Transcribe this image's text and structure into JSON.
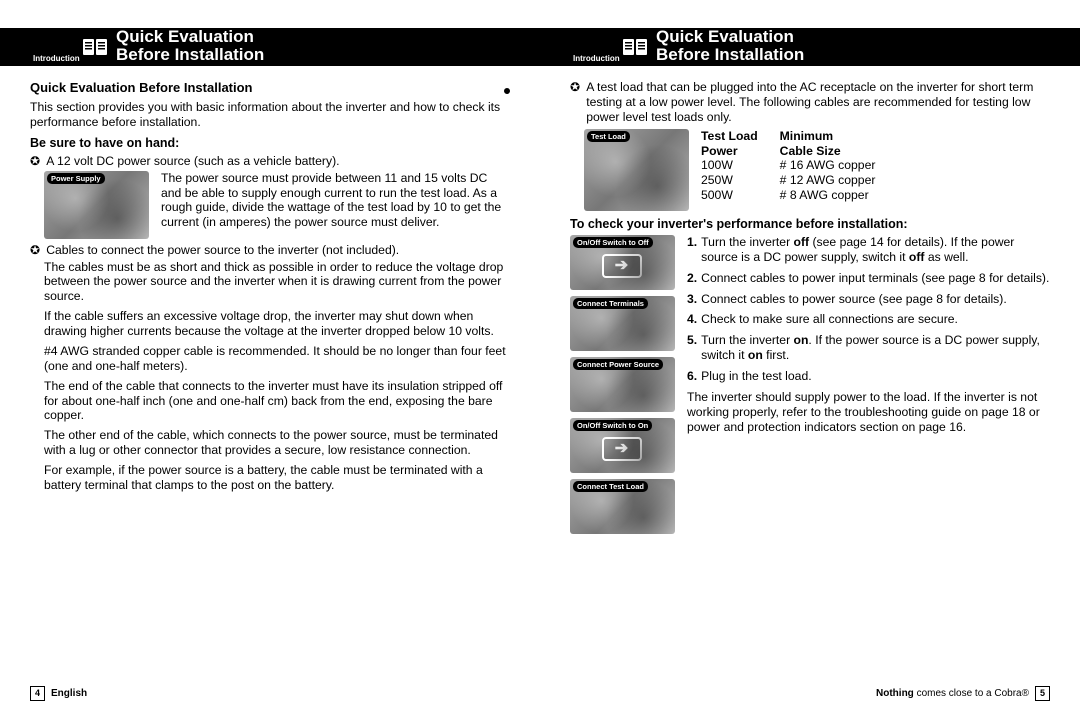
{
  "header": {
    "chip": "Introduction",
    "title_line1": "Quick Evaluation",
    "title_line2": "Before Installation"
  },
  "left": {
    "section_title": "Quick Evaluation Before Installation",
    "intro": "This section provides you with basic information about the inverter and how to check its performance before installation.",
    "subhead1": "Be sure to have on hand:",
    "bullet1": "A 12 volt DC power source (such as a vehicle battery).",
    "thumb1_label": "Power Supply",
    "para1": "The power source must provide between 11 and 15 volts DC and be able to supply enough current to run the test load. As a rough guide, divide the wattage of the test load by 10 to get the current (in amperes) the power source must deliver.",
    "bullet2": "Cables to connect the power source to the inverter (not included).",
    "para2": "The cables must be as short and thick as possible in order to reduce the voltage drop between the power source and the inverter when it is drawing current from the power source.",
    "para3": "If the cable suffers an excessive voltage drop, the inverter may shut down when drawing higher currents because the voltage at the inverter dropped below 10 volts.",
    "para4": "#4 AWG stranded copper cable is recommended. It should be no longer than four feet (one and one-half meters).",
    "para5": "The end of the cable that connects to the inverter must have its insulation stripped off for about one-half inch (one and one-half cm) back from the end, exposing the bare copper.",
    "para6": "The other end of the cable, which connects to the power source, must be terminated with a lug or other connector that provides a secure, low resistance connection.",
    "para7": "For example, if the power source is a battery, the cable must be terminated with a battery terminal that clamps to the post on the battery."
  },
  "right": {
    "bullet1": "A test load that can be plugged into the AC receptacle on the inverter for short term testing at a low power level. The following cables are recommended for testing low power level test loads only.",
    "thumb1_label": "Test Load",
    "table": {
      "h1a": "Test Load",
      "h1b": "Power",
      "h2a": "Minimum",
      "h2b": "Cable Size",
      "rows": [
        {
          "power": "100W",
          "size": "# 16 AWG copper"
        },
        {
          "power": "250W",
          "size": "# 12 AWG copper"
        },
        {
          "power": "500W",
          "size": "# 8  AWG copper"
        }
      ]
    },
    "subhead": "To check your inverter's performance before installation:",
    "thumbs": [
      "On/Off Switch to Off",
      "Connect Terminals",
      "Connect Power Source",
      "On/Off Switch to On",
      "Connect Test Load"
    ],
    "steps": [
      "Turn the inverter <b>off</b> (see page 14 for details). If the power source is a DC power supply, switch it <b>off</b> as well.",
      "Connect cables to power input terminals (see page 8 for details).",
      "Connect cables to power source (see page 8 for details).",
      "Check to make sure all connections are secure.",
      "Turn the inverter <b>on</b>. If the power source is a DC power supply, switch it <b>on</b> first.",
      "Plug in the test load."
    ],
    "closing": "The inverter should supply power to the load. If the inverter is not working properly, refer to the troubleshooting guide on page 18 or power and protection indicators section on page 16."
  },
  "footer": {
    "left_num": "4",
    "left_lang": "English",
    "right_tag_a": "Nothing",
    "right_tag_b": "comes close to a Cobra®",
    "right_num": "5"
  }
}
